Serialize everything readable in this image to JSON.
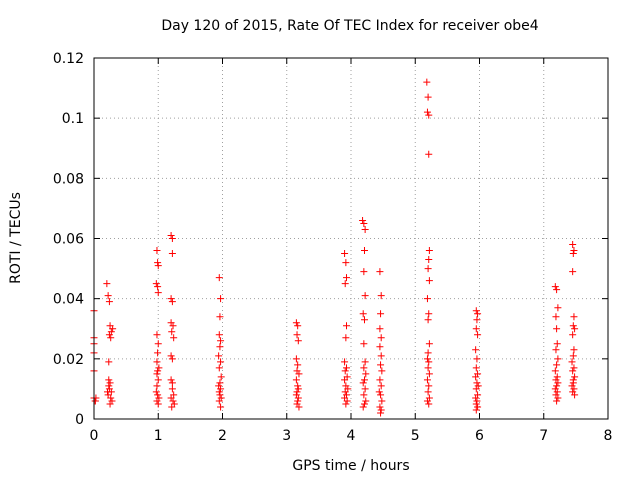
{
  "chart_data": {
    "type": "scatter",
    "title": "Day 120 of 2015, Rate Of TEC Index for receiver obe4",
    "xlabel": "GPS time / hours",
    "ylabel": "ROTI / TECUs",
    "xlim": [
      0,
      8
    ],
    "ylim": [
      0,
      0.12
    ],
    "x_ticks": [
      0,
      1,
      2,
      3,
      4,
      5,
      6,
      7,
      8
    ],
    "x_tick_labels": [
      "0",
      "1",
      "2",
      "3",
      "4",
      "5",
      "6",
      "7",
      "8"
    ],
    "y_ticks": [
      0,
      0.02,
      0.04,
      0.06,
      0.08,
      0.1,
      0.12
    ],
    "y_tick_labels": [
      "0",
      "0.02",
      "0.04",
      "0.06",
      "0.08",
      "0.1",
      "0.12"
    ],
    "grid": true,
    "marker": "+",
    "marker_color": "#ff0000",
    "series": [
      {
        "name": "obe4",
        "points": [
          [
            0.0,
            0.036
          ],
          [
            0.0,
            0.027
          ],
          [
            0.0,
            0.025
          ],
          [
            0.0,
            0.022
          ],
          [
            0.0,
            0.016
          ],
          [
            0.0,
            0.007
          ],
          [
            0.02,
            0.006
          ],
          [
            0.03,
            0.007
          ],
          [
            0.02,
            0.006
          ],
          [
            0.2,
            0.045
          ],
          [
            0.22,
            0.041
          ],
          [
            0.24,
            0.039
          ],
          [
            0.25,
            0.031
          ],
          [
            0.27,
            0.029
          ],
          [
            0.24,
            0.028
          ],
          [
            0.26,
            0.027
          ],
          [
            0.23,
            0.019
          ],
          [
            0.23,
            0.013
          ],
          [
            0.25,
            0.012
          ],
          [
            0.24,
            0.01
          ],
          [
            0.27,
            0.009
          ],
          [
            0.22,
            0.008
          ],
          [
            0.26,
            0.007
          ],
          [
            0.28,
            0.006
          ],
          [
            0.25,
            0.005
          ],
          [
            0.23,
            0.011
          ],
          [
            0.29,
            0.03
          ],
          [
            0.21,
            0.009
          ],
          [
            0.98,
            0.056
          ],
          [
            0.99,
            0.052
          ],
          [
            1.0,
            0.051
          ],
          [
            0.97,
            0.045
          ],
          [
            0.99,
            0.044
          ],
          [
            1.0,
            0.042
          ],
          [
            0.98,
            0.028
          ],
          [
            1.0,
            0.025
          ],
          [
            0.99,
            0.022
          ],
          [
            0.98,
            0.019
          ],
          [
            1.01,
            0.017
          ],
          [
            0.99,
            0.016
          ],
          [
            0.98,
            0.015
          ],
          [
            1.0,
            0.013
          ],
          [
            0.97,
            0.009
          ],
          [
            0.99,
            0.008
          ],
          [
            1.01,
            0.007
          ],
          [
            0.98,
            0.006
          ],
          [
            1.0,
            0.005
          ],
          [
            0.98,
            0.011
          ],
          [
            1.2,
            0.061
          ],
          [
            1.22,
            0.06
          ],
          [
            1.22,
            0.055
          ],
          [
            1.2,
            0.04
          ],
          [
            1.22,
            0.039
          ],
          [
            1.2,
            0.032
          ],
          [
            1.23,
            0.031
          ],
          [
            1.21,
            0.029
          ],
          [
            1.24,
            0.027
          ],
          [
            1.2,
            0.021
          ],
          [
            1.22,
            0.02
          ],
          [
            1.2,
            0.013
          ],
          [
            1.22,
            0.01
          ],
          [
            1.24,
            0.008
          ],
          [
            1.2,
            0.007
          ],
          [
            1.23,
            0.006
          ],
          [
            1.25,
            0.005
          ],
          [
            1.21,
            0.004
          ],
          [
            1.22,
            0.012
          ],
          [
            1.95,
            0.047
          ],
          [
            1.97,
            0.04
          ],
          [
            1.96,
            0.034
          ],
          [
            1.95,
            0.028
          ],
          [
            1.97,
            0.026
          ],
          [
            1.96,
            0.024
          ],
          [
            1.94,
            0.021
          ],
          [
            1.97,
            0.019
          ],
          [
            1.95,
            0.017
          ],
          [
            1.98,
            0.014
          ],
          [
            1.96,
            0.012
          ],
          [
            1.94,
            0.011
          ],
          [
            1.97,
            0.01
          ],
          [
            1.95,
            0.009
          ],
          [
            1.96,
            0.008
          ],
          [
            1.98,
            0.007
          ],
          [
            1.95,
            0.006
          ],
          [
            1.97,
            0.004
          ],
          [
            3.15,
            0.032
          ],
          [
            3.17,
            0.031
          ],
          [
            3.16,
            0.028
          ],
          [
            3.18,
            0.026
          ],
          [
            3.15,
            0.02
          ],
          [
            3.17,
            0.018
          ],
          [
            3.16,
            0.016
          ],
          [
            3.19,
            0.015
          ],
          [
            3.15,
            0.013
          ],
          [
            3.17,
            0.011
          ],
          [
            3.18,
            0.01
          ],
          [
            3.16,
            0.009
          ],
          [
            3.15,
            0.008
          ],
          [
            3.18,
            0.007
          ],
          [
            3.17,
            0.006
          ],
          [
            3.16,
            0.005
          ],
          [
            3.19,
            0.004
          ],
          [
            3.9,
            0.055
          ],
          [
            3.92,
            0.052
          ],
          [
            3.93,
            0.047
          ],
          [
            3.91,
            0.045
          ],
          [
            3.93,
            0.031
          ],
          [
            3.92,
            0.027
          ],
          [
            3.9,
            0.019
          ],
          [
            3.93,
            0.017
          ],
          [
            3.91,
            0.016
          ],
          [
            3.94,
            0.014
          ],
          [
            3.9,
            0.013
          ],
          [
            3.92,
            0.011
          ],
          [
            3.95,
            0.01
          ],
          [
            3.91,
            0.009
          ],
          [
            3.93,
            0.008
          ],
          [
            3.9,
            0.007
          ],
          [
            3.94,
            0.006
          ],
          [
            3.92,
            0.005
          ],
          [
            4.18,
            0.066
          ],
          [
            4.2,
            0.065
          ],
          [
            4.22,
            0.063
          ],
          [
            4.21,
            0.056
          ],
          [
            4.2,
            0.049
          ],
          [
            4.22,
            0.041
          ],
          [
            4.19,
            0.035
          ],
          [
            4.21,
            0.033
          ],
          [
            4.2,
            0.025
          ],
          [
            4.22,
            0.019
          ],
          [
            4.2,
            0.017
          ],
          [
            4.23,
            0.015
          ],
          [
            4.21,
            0.013
          ],
          [
            4.19,
            0.012
          ],
          [
            4.22,
            0.01
          ],
          [
            4.2,
            0.008
          ],
          [
            4.23,
            0.006
          ],
          [
            4.21,
            0.005
          ],
          [
            4.19,
            0.004
          ],
          [
            4.45,
            0.049
          ],
          [
            4.47,
            0.041
          ],
          [
            4.46,
            0.035
          ],
          [
            4.45,
            0.03
          ],
          [
            4.47,
            0.027
          ],
          [
            4.45,
            0.024
          ],
          [
            4.47,
            0.021
          ],
          [
            4.46,
            0.018
          ],
          [
            4.48,
            0.016
          ],
          [
            4.45,
            0.013
          ],
          [
            4.47,
            0.011
          ],
          [
            4.44,
            0.009
          ],
          [
            4.46,
            0.008
          ],
          [
            4.48,
            0.006
          ],
          [
            4.45,
            0.004
          ],
          [
            4.47,
            0.003
          ],
          [
            4.46,
            0.002
          ],
          [
            5.18,
            0.112
          ],
          [
            5.2,
            0.107
          ],
          [
            5.19,
            0.102
          ],
          [
            5.21,
            0.101
          ],
          [
            5.21,
            0.088
          ],
          [
            5.22,
            0.056
          ],
          [
            5.21,
            0.053
          ],
          [
            5.2,
            0.05
          ],
          [
            5.22,
            0.046
          ],
          [
            5.19,
            0.04
          ],
          [
            5.21,
            0.035
          ],
          [
            5.2,
            0.033
          ],
          [
            5.22,
            0.025
          ],
          [
            5.2,
            0.022
          ],
          [
            5.19,
            0.02
          ],
          [
            5.21,
            0.019
          ],
          [
            5.2,
            0.017
          ],
          [
            5.22,
            0.015
          ],
          [
            5.19,
            0.013
          ],
          [
            5.21,
            0.011
          ],
          [
            5.2,
            0.009
          ],
          [
            5.22,
            0.007
          ],
          [
            5.19,
            0.006
          ],
          [
            5.21,
            0.005
          ],
          [
            5.95,
            0.036
          ],
          [
            5.97,
            0.035
          ],
          [
            5.96,
            0.033
          ],
          [
            5.95,
            0.03
          ],
          [
            5.97,
            0.028
          ],
          [
            5.94,
            0.023
          ],
          [
            5.96,
            0.02
          ],
          [
            5.95,
            0.017
          ],
          [
            5.97,
            0.015
          ],
          [
            5.94,
            0.014
          ],
          [
            5.96,
            0.012
          ],
          [
            5.98,
            0.011
          ],
          [
            5.95,
            0.01
          ],
          [
            5.97,
            0.008
          ],
          [
            5.94,
            0.007
          ],
          [
            5.96,
            0.006
          ],
          [
            5.95,
            0.005
          ],
          [
            5.97,
            0.004
          ],
          [
            5.95,
            0.003
          ],
          [
            7.18,
            0.044
          ],
          [
            7.2,
            0.043
          ],
          [
            7.22,
            0.037
          ],
          [
            7.19,
            0.034
          ],
          [
            7.2,
            0.03
          ],
          [
            7.21,
            0.025
          ],
          [
            7.19,
            0.023
          ],
          [
            7.22,
            0.02
          ],
          [
            7.2,
            0.018
          ],
          [
            7.18,
            0.016
          ],
          [
            7.21,
            0.014
          ],
          [
            7.19,
            0.013
          ],
          [
            7.22,
            0.012
          ],
          [
            7.2,
            0.011
          ],
          [
            7.18,
            0.01
          ],
          [
            7.21,
            0.009
          ],
          [
            7.19,
            0.008
          ],
          [
            7.22,
            0.007
          ],
          [
            7.2,
            0.006
          ],
          [
            7.45,
            0.058
          ],
          [
            7.47,
            0.056
          ],
          [
            7.46,
            0.055
          ],
          [
            7.45,
            0.049
          ],
          [
            7.47,
            0.034
          ],
          [
            7.46,
            0.031
          ],
          [
            7.48,
            0.03
          ],
          [
            7.45,
            0.028
          ],
          [
            7.47,
            0.023
          ],
          [
            7.46,
            0.021
          ],
          [
            7.44,
            0.019
          ],
          [
            7.47,
            0.017
          ],
          [
            7.45,
            0.016
          ],
          [
            7.48,
            0.014
          ],
          [
            7.46,
            0.012
          ],
          [
            7.44,
            0.011
          ],
          [
            7.47,
            0.01
          ],
          [
            7.45,
            0.009
          ],
          [
            7.48,
            0.008
          ],
          [
            7.46,
            0.013
          ]
        ]
      }
    ]
  }
}
